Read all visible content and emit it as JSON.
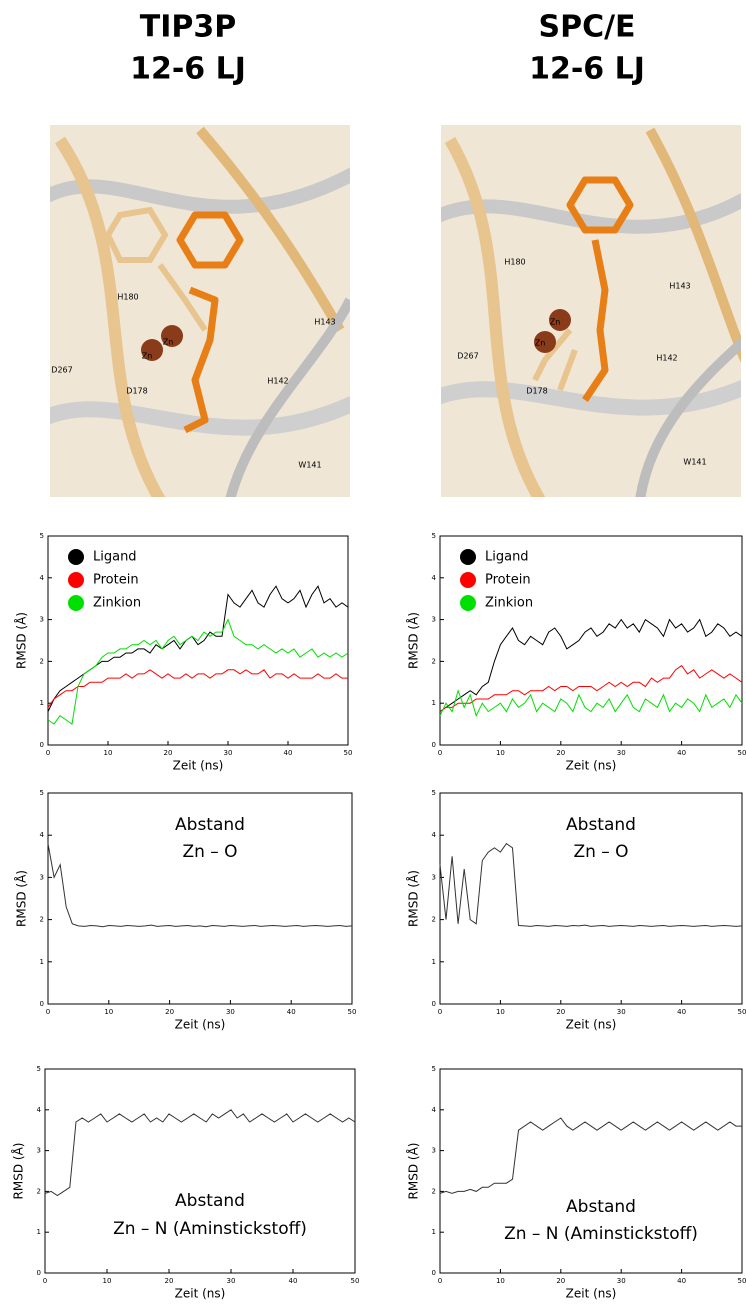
{
  "headers": [
    [
      "TIP3P",
      "12-6 LJ"
    ],
    [
      "SPC/E",
      "12-6 LJ"
    ]
  ],
  "images": [
    [
      "H180",
      "Zn",
      "Zn",
      "D267",
      "D178",
      "H142",
      "H143",
      "W141"
    ],
    [
      "H180",
      "H143",
      "D267",
      "Zn",
      "Zn",
      "H142",
      "D178",
      "W141"
    ]
  ],
  "chart_data": [
    {
      "type": "line",
      "xlabel": "Zeit (ns)",
      "ylabel": "RMSD (Å)",
      "xlim": [
        0,
        50
      ],
      "ylim": [
        0,
        5
      ],
      "xticks": [
        0,
        10,
        20,
        30,
        40,
        50
      ],
      "yticks": [
        0,
        1,
        2,
        3,
        4,
        5
      ],
      "legend": "upper left",
      "x": [
        0,
        1,
        2,
        3,
        4,
        5,
        6,
        7,
        8,
        9,
        10,
        11,
        12,
        13,
        14,
        15,
        16,
        17,
        18,
        19,
        20,
        21,
        22,
        23,
        24,
        25,
        26,
        27,
        28,
        29,
        30,
        31,
        32,
        33,
        34,
        35,
        36,
        37,
        38,
        39,
        40,
        41,
        42,
        43,
        44,
        45,
        46,
        47,
        48,
        49,
        50
      ],
      "series": [
        {
          "name": "Ligand",
          "color": "#000000",
          "values": [
            0.8,
            1.1,
            1.3,
            1.4,
            1.5,
            1.6,
            1.7,
            1.8,
            1.9,
            2.0,
            2.0,
            2.1,
            2.1,
            2.2,
            2.2,
            2.3,
            2.3,
            2.2,
            2.4,
            2.3,
            2.4,
            2.5,
            2.3,
            2.5,
            2.6,
            2.4,
            2.5,
            2.7,
            2.6,
            2.6,
            3.6,
            3.4,
            3.3,
            3.5,
            3.7,
            3.4,
            3.3,
            3.6,
            3.8,
            3.5,
            3.4,
            3.5,
            3.7,
            3.3,
            3.6,
            3.8,
            3.4,
            3.5,
            3.3,
            3.4,
            3.3
          ]
        },
        {
          "name": "Protein",
          "color": "#ff0000",
          "values": [
            0.9,
            1.1,
            1.2,
            1.3,
            1.3,
            1.4,
            1.4,
            1.5,
            1.5,
            1.5,
            1.6,
            1.6,
            1.6,
            1.7,
            1.6,
            1.7,
            1.7,
            1.8,
            1.7,
            1.6,
            1.7,
            1.6,
            1.6,
            1.7,
            1.6,
            1.7,
            1.7,
            1.6,
            1.7,
            1.7,
            1.8,
            1.8,
            1.7,
            1.8,
            1.7,
            1.7,
            1.8,
            1.6,
            1.7,
            1.7,
            1.6,
            1.7,
            1.6,
            1.6,
            1.6,
            1.7,
            1.6,
            1.6,
            1.7,
            1.6,
            1.6
          ]
        },
        {
          "name": "Zinkion",
          "color": "#00e000",
          "values": [
            0.6,
            0.5,
            0.7,
            0.6,
            0.5,
            1.4,
            1.7,
            1.8,
            1.9,
            2.1,
            2.2,
            2.2,
            2.3,
            2.3,
            2.4,
            2.4,
            2.5,
            2.4,
            2.5,
            2.3,
            2.5,
            2.6,
            2.4,
            2.5,
            2.6,
            2.5,
            2.7,
            2.6,
            2.7,
            2.7,
            3.0,
            2.6,
            2.5,
            2.4,
            2.4,
            2.3,
            2.4,
            2.3,
            2.2,
            2.3,
            2.2,
            2.3,
            2.1,
            2.2,
            2.3,
            2.1,
            2.2,
            2.1,
            2.2,
            2.1,
            2.2
          ]
        }
      ]
    },
    {
      "type": "line",
      "xlabel": "Zeit (ns)",
      "ylabel": "RMSD (Å)",
      "xlim": [
        0,
        50
      ],
      "ylim": [
        0,
        5
      ],
      "xticks": [
        0,
        10,
        20,
        30,
        40,
        50
      ],
      "yticks": [
        0,
        1,
        2,
        3,
        4,
        5
      ],
      "legend": "upper left",
      "x": [
        0,
        1,
        2,
        3,
        4,
        5,
        6,
        7,
        8,
        9,
        10,
        11,
        12,
        13,
        14,
        15,
        16,
        17,
        18,
        19,
        20,
        21,
        22,
        23,
        24,
        25,
        26,
        27,
        28,
        29,
        30,
        31,
        32,
        33,
        34,
        35,
        36,
        37,
        38,
        39,
        40,
        41,
        42,
        43,
        44,
        45,
        46,
        47,
        48,
        49,
        50
      ],
      "series": [
        {
          "name": "Ligand",
          "color": "#000000",
          "values": [
            0.8,
            0.9,
            1.0,
            1.1,
            1.2,
            1.3,
            1.2,
            1.4,
            1.5,
            2.0,
            2.4,
            2.6,
            2.8,
            2.5,
            2.4,
            2.6,
            2.5,
            2.4,
            2.7,
            2.8,
            2.6,
            2.3,
            2.4,
            2.5,
            2.7,
            2.8,
            2.6,
            2.7,
            2.9,
            2.8,
            3.0,
            2.8,
            2.9,
            2.7,
            3.0,
            2.9,
            2.8,
            2.6,
            3.0,
            2.8,
            2.9,
            2.7,
            2.8,
            3.0,
            2.6,
            2.7,
            2.9,
            2.8,
            2.6,
            2.7,
            2.6
          ]
        },
        {
          "name": "Protein",
          "color": "#ff0000",
          "values": [
            0.8,
            0.9,
            0.9,
            1.0,
            1.0,
            1.0,
            1.1,
            1.1,
            1.1,
            1.2,
            1.2,
            1.2,
            1.3,
            1.3,
            1.2,
            1.3,
            1.3,
            1.3,
            1.4,
            1.3,
            1.4,
            1.4,
            1.3,
            1.4,
            1.4,
            1.4,
            1.3,
            1.4,
            1.5,
            1.4,
            1.5,
            1.4,
            1.5,
            1.5,
            1.4,
            1.6,
            1.5,
            1.6,
            1.6,
            1.8,
            1.9,
            1.7,
            1.8,
            1.6,
            1.7,
            1.8,
            1.7,
            1.6,
            1.7,
            1.6,
            1.5
          ]
        },
        {
          "name": "Zinkion",
          "color": "#00e000",
          "values": [
            0.7,
            1.0,
            0.8,
            1.3,
            0.9,
            1.2,
            0.7,
            1.0,
            0.8,
            0.9,
            1.0,
            0.8,
            1.1,
            0.9,
            1.0,
            1.2,
            0.8,
            1.0,
            0.9,
            0.8,
            1.1,
            1.0,
            0.8,
            1.2,
            0.9,
            0.8,
            1.0,
            0.9,
            1.1,
            0.8,
            1.0,
            1.2,
            0.9,
            0.8,
            1.1,
            1.0,
            0.9,
            1.2,
            0.8,
            1.0,
            0.9,
            1.1,
            1.0,
            0.8,
            1.2,
            0.9,
            1.0,
            1.1,
            0.9,
            1.2,
            1.0
          ]
        }
      ]
    },
    {
      "type": "line",
      "xlabel": "Zeit (ns)",
      "ylabel": "RMSD (Å)",
      "annotation": [
        "Abstand",
        "Zn – O"
      ],
      "xlim": [
        0,
        50
      ],
      "ylim": [
        0,
        5
      ],
      "xticks": [
        0,
        10,
        20,
        30,
        40,
        50
      ],
      "yticks": [
        0,
        1,
        2,
        3,
        4,
        5
      ],
      "x": [
        0,
        1,
        2,
        3,
        4,
        5,
        6,
        7,
        8,
        9,
        10,
        11,
        12,
        13,
        14,
        15,
        16,
        17,
        18,
        19,
        20,
        21,
        22,
        23,
        24,
        25,
        26,
        27,
        28,
        29,
        30,
        31,
        32,
        33,
        34,
        35,
        36,
        37,
        38,
        39,
        40,
        41,
        42,
        43,
        44,
        45,
        46,
        47,
        48,
        49,
        50
      ],
      "series": [
        {
          "color": "#333333",
          "values": [
            3.8,
            3.0,
            3.3,
            2.3,
            1.9,
            1.85,
            1.84,
            1.86,
            1.85,
            1.83,
            1.86,
            1.85,
            1.84,
            1.86,
            1.85,
            1.84,
            1.85,
            1.87,
            1.84,
            1.85,
            1.86,
            1.84,
            1.85,
            1.86,
            1.84,
            1.85,
            1.83,
            1.86,
            1.85,
            1.84,
            1.86,
            1.85,
            1.84,
            1.85,
            1.86,
            1.84,
            1.85,
            1.86,
            1.85,
            1.84,
            1.85,
            1.86,
            1.84,
            1.85,
            1.86,
            1.85,
            1.84,
            1.85,
            1.86,
            1.84,
            1.85
          ]
        }
      ]
    },
    {
      "type": "line",
      "xlabel": "Zeit (ns)",
      "ylabel": "RMSD (Å)",
      "annotation": [
        "Abstand",
        "Zn – O"
      ],
      "xlim": [
        0,
        50
      ],
      "ylim": [
        0,
        5
      ],
      "xticks": [
        0,
        10,
        20,
        30,
        40,
        50
      ],
      "yticks": [
        0,
        1,
        2,
        3,
        4,
        5
      ],
      "x": [
        0,
        1,
        2,
        3,
        4,
        5,
        6,
        7,
        8,
        9,
        10,
        11,
        12,
        13,
        14,
        15,
        16,
        17,
        18,
        19,
        20,
        21,
        22,
        23,
        24,
        25,
        26,
        27,
        28,
        29,
        30,
        31,
        32,
        33,
        34,
        35,
        36,
        37,
        38,
        39,
        40,
        41,
        42,
        43,
        44,
        45,
        46,
        47,
        48,
        49,
        50
      ],
      "series": [
        {
          "color": "#333333",
          "values": [
            3.3,
            2.0,
            3.5,
            1.9,
            3.2,
            2.0,
            1.9,
            3.4,
            3.6,
            3.7,
            3.6,
            3.8,
            3.7,
            1.86,
            1.85,
            1.84,
            1.86,
            1.85,
            1.84,
            1.86,
            1.85,
            1.84,
            1.86,
            1.85,
            1.87,
            1.84,
            1.85,
            1.86,
            1.84,
            1.85,
            1.86,
            1.85,
            1.84,
            1.86,
            1.85,
            1.84,
            1.85,
            1.86,
            1.84,
            1.85,
            1.86,
            1.85,
            1.84,
            1.85,
            1.86,
            1.84,
            1.85,
            1.86,
            1.85,
            1.84,
            1.85
          ]
        }
      ]
    },
    {
      "type": "line",
      "xlabel": "Zeit (ns)",
      "ylabel": "RMSD (Å)",
      "annotation": [
        "Abstand",
        "Zn – N (Aminstickstoff)"
      ],
      "xlim": [
        0,
        50
      ],
      "ylim": [
        0,
        5
      ],
      "xticks": [
        0,
        10,
        20,
        30,
        40,
        50
      ],
      "yticks": [
        0,
        1,
        2,
        3,
        4,
        5
      ],
      "x": [
        0,
        1,
        2,
        3,
        4,
        5,
        6,
        7,
        8,
        9,
        10,
        11,
        12,
        13,
        14,
        15,
        16,
        17,
        18,
        19,
        20,
        21,
        22,
        23,
        24,
        25,
        26,
        27,
        28,
        29,
        30,
        31,
        32,
        33,
        34,
        35,
        36,
        37,
        38,
        39,
        40,
        41,
        42,
        43,
        44,
        45,
        46,
        47,
        48,
        49,
        50
      ],
      "series": [
        {
          "color": "#333333",
          "values": [
            1.95,
            2.0,
            1.9,
            2.0,
            2.1,
            3.7,
            3.8,
            3.7,
            3.8,
            3.9,
            3.7,
            3.8,
            3.9,
            3.8,
            3.7,
            3.8,
            3.9,
            3.7,
            3.8,
            3.7,
            3.9,
            3.8,
            3.7,
            3.8,
            3.9,
            3.8,
            3.7,
            3.9,
            3.8,
            3.9,
            4.0,
            3.8,
            3.9,
            3.7,
            3.8,
            3.9,
            3.8,
            3.7,
            3.8,
            3.9,
            3.7,
            3.8,
            3.9,
            3.8,
            3.7,
            3.8,
            3.9,
            3.8,
            3.7,
            3.8,
            3.7
          ]
        }
      ]
    },
    {
      "type": "line",
      "xlabel": "Zeit (ns)",
      "ylabel": "RMSD (Å)",
      "annotation": [
        "Abstand",
        "Zn – N (Aminstickstoff)"
      ],
      "xlim": [
        0,
        50
      ],
      "ylim": [
        0,
        5
      ],
      "xticks": [
        0,
        10,
        20,
        30,
        40,
        50
      ],
      "yticks": [
        0,
        1,
        2,
        3,
        4,
        5
      ],
      "x": [
        0,
        1,
        2,
        3,
        4,
        5,
        6,
        7,
        8,
        9,
        10,
        11,
        12,
        13,
        14,
        15,
        16,
        17,
        18,
        19,
        20,
        21,
        22,
        23,
        24,
        25,
        26,
        27,
        28,
        29,
        30,
        31,
        32,
        33,
        34,
        35,
        36,
        37,
        38,
        39,
        40,
        41,
        42,
        43,
        44,
        45,
        46,
        47,
        48,
        49,
        50
      ],
      "series": [
        {
          "color": "#333333",
          "values": [
            1.95,
            2.0,
            1.95,
            2.0,
            2.0,
            2.05,
            2.0,
            2.1,
            2.1,
            2.2,
            2.2,
            2.2,
            2.3,
            3.5,
            3.6,
            3.7,
            3.6,
            3.5,
            3.6,
            3.7,
            3.8,
            3.6,
            3.5,
            3.6,
            3.7,
            3.6,
            3.5,
            3.6,
            3.7,
            3.6,
            3.5,
            3.6,
            3.7,
            3.6,
            3.5,
            3.6,
            3.7,
            3.6,
            3.5,
            3.6,
            3.7,
            3.6,
            3.5,
            3.6,
            3.7,
            3.6,
            3.5,
            3.6,
            3.7,
            3.6,
            3.6
          ]
        }
      ]
    }
  ]
}
